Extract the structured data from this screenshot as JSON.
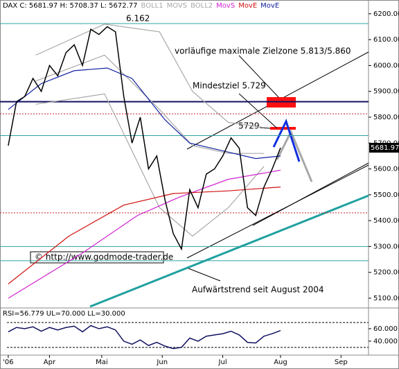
{
  "chart_data": [
    {
      "type": "line",
      "header": "DAX C: 5681.97 H: 5708.37 L: 5672.77",
      "x": [
        0,
        3,
        6,
        9,
        12,
        15,
        18,
        21,
        24,
        27,
        30,
        33,
        36,
        39,
        42,
        45,
        48,
        51,
        54,
        57,
        60,
        63,
        66,
        69,
        72,
        75,
        78,
        81,
        84,
        87,
        90,
        93,
        96,
        99
      ],
      "values": [
        5690,
        5860,
        5880,
        5950,
        5900,
        6000,
        5960,
        6050,
        6080,
        6000,
        6140,
        6120,
        6150,
        6130,
        5880,
        5700,
        5800,
        5600,
        5650,
        5480,
        5350,
        5290,
        5520,
        5450,
        5580,
        5600,
        5650,
        5720,
        5680,
        5450,
        5420,
        5530,
        5600,
        5682
      ],
      "color": "#000000",
      "series": [
        {
          "name": "BOLL1",
          "color": "#a8a8a8",
          "x": [
            10,
            35,
            55,
            67,
            80,
            93
          ],
          "values": [
            6040,
            6160,
            6130,
            5900,
            5780,
            5760
          ]
        },
        {
          "name": "MOVS",
          "color": "#a8a8a8",
          "x": [
            10,
            35,
            55,
            67,
            80,
            93
          ],
          "values": [
            5940,
            6040,
            5830,
            5690,
            5660,
            5660
          ]
        },
        {
          "name": "BOLL2",
          "color": "#a8a8a8",
          "x": [
            10,
            35,
            55,
            67,
            80,
            93
          ],
          "values": [
            5850,
            5890,
            5450,
            5340,
            5450,
            5610
          ]
        },
        {
          "name": "MovS",
          "color": "#d020d0",
          "x": [
            0,
            27,
            47,
            62,
            80,
            99
          ],
          "values": [
            5100,
            5275,
            5420,
            5490,
            5560,
            5595
          ]
        },
        {
          "name": "MovE",
          "color": "#d01010",
          "x": [
            0,
            22,
            42,
            60,
            80,
            99
          ],
          "values": [
            5155,
            5340,
            5460,
            5505,
            5515,
            5530
          ]
        },
        {
          "name": "MovE",
          "color": "#1020a0",
          "x": [
            0,
            12,
            24,
            36,
            45,
            57,
            66,
            78,
            90,
            99
          ],
          "values": [
            5830,
            5930,
            5980,
            5990,
            5950,
            5790,
            5700,
            5670,
            5640,
            5650
          ]
        }
      ],
      "hlines": [
        {
          "value": 6162,
          "color": "#30a0a0"
        },
        {
          "value": 5860,
          "color": "#101060"
        },
        {
          "value": 5813,
          "color": "#d02020"
        },
        {
          "value": 5729,
          "color": "#30a0a0"
        },
        {
          "value": 5430,
          "color": "#d02020"
        },
        {
          "value": 5300,
          "color": "#30a0a0"
        },
        {
          "value": 5245,
          "color": "#30a0a0"
        }
      ],
      "last_price": 5681.97,
      "last_label": "5681.97",
      "annotations": [
        "6.162",
        "vorläufige maximale Zielzone 5.813/5.860",
        "Mindestziel 5.729",
        "5729",
        "© http://www.godmode-trader.de",
        "Aufwärtstrend seit August 2004"
      ],
      "xlim": [
        -3,
        131
      ],
      "xticks": [
        {
          "value": 0,
          "label": "'06"
        },
        {
          "value": 15,
          "label": "Apr"
        },
        {
          "value": 34,
          "label": "Mai"
        },
        {
          "value": 56,
          "label": "Jun"
        },
        {
          "value": 78,
          "label": "Jul"
        },
        {
          "value": 99,
          "label": "Aug"
        },
        {
          "value": 121,
          "label": "Sep"
        }
      ],
      "ylim": [
        5065,
        6213
      ],
      "yticks": [
        {
          "value": 6200,
          "label": "6200.00"
        },
        {
          "value": 6100,
          "label": "6100.00"
        },
        {
          "value": 6000,
          "label": "6000.00"
        },
        {
          "value": 5900,
          "label": "5900.00"
        },
        {
          "value": 5800,
          "label": "5800.00"
        },
        {
          "value": 5700,
          "label": "5700.00"
        },
        {
          "value": 5600,
          "label": "5600.00"
        },
        {
          "value": 5500,
          "label": "5500.00"
        },
        {
          "value": 5400,
          "label": "5400.00"
        },
        {
          "value": 5300,
          "label": "5300.00"
        },
        {
          "value": 5200,
          "label": "5200.00"
        },
        {
          "value": 5100,
          "label": "5100.00"
        }
      ]
    },
    {
      "type": "line",
      "header": "RSI=56.779 UL=70.000 LL=30.000",
      "x": [
        0,
        3,
        6,
        9,
        12,
        15,
        18,
        21,
        24,
        27,
        30,
        33,
        36,
        39,
        42,
        45,
        48,
        51,
        54,
        57,
        60,
        63,
        66,
        69,
        72,
        75,
        78,
        81,
        84,
        87,
        90,
        93,
        96,
        99
      ],
      "values": [
        55,
        62,
        60,
        63,
        56,
        62,
        58,
        62,
        64,
        55,
        65,
        60,
        63,
        58,
        40,
        35,
        42,
        33,
        38,
        32,
        28,
        30,
        45,
        40,
        48,
        50,
        52,
        56,
        50,
        38,
        37,
        48,
        52,
        57
      ],
      "color": "#101060",
      "bands": [
        70,
        30
      ],
      "ylim": [
        22,
        90
      ],
      "yticks": [
        {
          "value": 60,
          "label": "60.000"
        },
        {
          "value": 40,
          "label": "40.000"
        }
      ]
    }
  ]
}
